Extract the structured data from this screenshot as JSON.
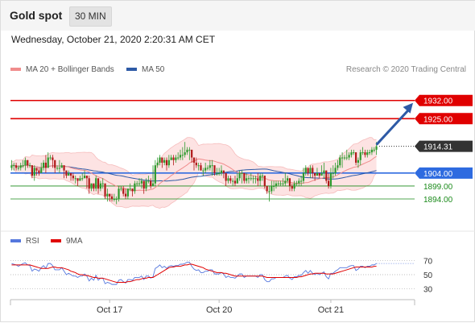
{
  "header": {
    "title": "Gold spot",
    "interval": "30 MIN",
    "datetime": "Wednesday, October 21, 2020 2:20:31 AM CET"
  },
  "legend": {
    "ma20_label": "MA 20 + Bollinger Bands",
    "ma50_label": "MA 50",
    "credit": "Research © 2020 Trading Central"
  },
  "rsi_legend": {
    "rsi_label": "RSI",
    "ma9_label": "9MA"
  },
  "colors": {
    "ma20": "#f08c8c",
    "ma50": "#2e5aa6",
    "bollinger_fill": "#fde3e3",
    "resistance": "#e00000",
    "pivot": "#2e6be0",
    "support": "#1a8a1a",
    "candle_up": "#2c9a2c",
    "candle_down": "#b01818",
    "arrow": "#2e5aa6",
    "rsi": "#5577dd",
    "rsi_ma": "#e00000"
  },
  "chart_data": [
    {
      "type": "candlestick",
      "ylim": [
        1885,
        1940
      ],
      "x_tick_labels": [
        "Oct 17",
        "Oct 20",
        "Oct 21"
      ],
      "levels": [
        {
          "label": "1932.00",
          "value": 1932.0,
          "kind": "resistance"
        },
        {
          "label": "1925.00",
          "value": 1925.0,
          "kind": "resistance"
        },
        {
          "label": "1914.31",
          "value": 1914.31,
          "kind": "last"
        },
        {
          "label": "1904.00",
          "value": 1904.0,
          "kind": "pivot"
        },
        {
          "label": "1899.00",
          "value": 1899.0,
          "kind": "support"
        },
        {
          "label": "1894.00",
          "value": 1894.0,
          "kind": "support"
        }
      ],
      "close": [
        1907,
        1907,
        1906,
        1906,
        1907,
        1907,
        1909,
        1907,
        1907,
        1903,
        1906,
        1905,
        1904,
        1906,
        1908,
        1906,
        1910,
        1910,
        1909,
        1906,
        1906,
        1906,
        1907,
        1905,
        1903,
        1904,
        1903,
        1902,
        1902,
        1901,
        1902,
        1902,
        1903,
        1902,
        1898,
        1900,
        1898,
        1902,
        1898,
        1900,
        1900,
        1895,
        1896,
        1895,
        1894,
        1894,
        1894,
        1898,
        1898,
        1896,
        1895,
        1898,
        1898,
        1897,
        1900,
        1900,
        1900,
        1901,
        1898,
        1901,
        1901,
        1899,
        1900,
        1907,
        1908,
        1910,
        1908,
        1909,
        1907,
        1909,
        1910,
        1909,
        1910,
        1910,
        1911,
        1911,
        1912,
        1913,
        1913,
        1910,
        1908,
        1907,
        1907,
        1905,
        1905,
        1906,
        1906,
        1907,
        1907,
        1904,
        1904,
        1904,
        1905,
        1904,
        1901,
        1902,
        1901,
        1901,
        1900,
        1902,
        1904,
        1904,
        1901,
        1902,
        1902,
        1902,
        1902,
        1902,
        1901,
        1903,
        1903,
        1899,
        1897,
        1897,
        1899,
        1899,
        1900,
        1900,
        1900,
        1900,
        1901,
        1902,
        1899,
        1898,
        1900,
        1900,
        1901,
        1901,
        1904,
        1906,
        1904,
        1906,
        1904,
        1903,
        1904,
        1903,
        1904,
        1905,
        1901,
        1899,
        1904,
        1904,
        1906,
        1907,
        1910,
        1910,
        1910,
        1910,
        1911,
        1912,
        1912,
        1908,
        1909,
        1912,
        1912,
        1911,
        1912,
        1912,
        1913,
        1913,
        1914.31
      ],
      "high": [
        1909,
        1908,
        1908,
        1907,
        1908,
        1909,
        1910,
        1909,
        1908,
        1907,
        1907,
        1906,
        1906,
        1908,
        1909,
        1911,
        1912,
        1911,
        1911,
        1909,
        1907,
        1909,
        1908,
        1907,
        1905,
        1905,
        1904,
        1904,
        1903,
        1902,
        1903,
        1904,
        1905,
        1903,
        1903,
        1900,
        1900,
        1903,
        1901,
        1901,
        1902,
        1900,
        1898,
        1896,
        1896,
        1896,
        1895,
        1899,
        1899,
        1899,
        1898,
        1898,
        1900,
        1898,
        1901,
        1901,
        1902,
        1902,
        1901,
        1902,
        1903,
        1902,
        1907,
        1909,
        1910,
        1911,
        1910,
        1910,
        1910,
        1911,
        1911,
        1911,
        1911,
        1912,
        1913,
        1914,
        1916,
        1914,
        1914,
        1912,
        1910,
        1910,
        1908,
        1908,
        1906,
        1908,
        1907,
        1909,
        1909,
        1907,
        1906,
        1906,
        1907,
        1905,
        1904,
        1903,
        1903,
        1902,
        1903,
        1904,
        1905,
        1905,
        1904,
        1904,
        1903,
        1904,
        1903,
        1903,
        1904,
        1904,
        1904,
        1903,
        1899,
        1899,
        1901,
        1901,
        1901,
        1901,
        1901,
        1902,
        1904,
        1903,
        1902,
        1900,
        1901,
        1901,
        1902,
        1903,
        1906,
        1907,
        1906,
        1907,
        1907,
        1904,
        1906,
        1904,
        1907,
        1908,
        1905,
        1904,
        1906,
        1907,
        1908,
        1909,
        1911,
        1912,
        1911,
        1913,
        1912,
        1913,
        1913,
        1912,
        1910,
        1913,
        1914,
        1913,
        1913,
        1913,
        1914,
        1914,
        1916
      ],
      "low": [
        1905,
        1905,
        1905,
        1905,
        1905,
        1906,
        1905,
        1906,
        1906,
        1902,
        1901,
        1903,
        1903,
        1904,
        1905,
        1904,
        1906,
        1909,
        1906,
        1904,
        1905,
        1904,
        1906,
        1902,
        1902,
        1903,
        1901,
        1901,
        1900,
        1899,
        1901,
        1901,
        1902,
        1898,
        1896,
        1897,
        1897,
        1897,
        1896,
        1897,
        1898,
        1894,
        1893,
        1893,
        1893,
        1893,
        1892,
        1893,
        1897,
        1895,
        1894,
        1894,
        1897,
        1895,
        1896,
        1899,
        1899,
        1898,
        1896,
        1897,
        1900,
        1898,
        1899,
        1899,
        1906,
        1907,
        1906,
        1907,
        1905,
        1906,
        1909,
        1907,
        1908,
        1909,
        1909,
        1909,
        1910,
        1911,
        1909,
        1908,
        1905,
        1906,
        1905,
        1905,
        1903,
        1904,
        1905,
        1905,
        1903,
        1903,
        1903,
        1903,
        1903,
        1902,
        1899,
        1900,
        1900,
        1899,
        1899,
        1900,
        1901,
        1900,
        1900,
        1900,
        1900,
        1901,
        1900,
        1900,
        1899,
        1899,
        1901,
        1898,
        1896,
        1893,
        1896,
        1897,
        1898,
        1899,
        1899,
        1899,
        1899,
        1900,
        1897,
        1897,
        1897,
        1899,
        1899,
        1899,
        1900,
        1903,
        1903,
        1902,
        1902,
        1901,
        1903,
        1902,
        1903,
        1902,
        1900,
        1898,
        1898,
        1902,
        1903,
        1905,
        1906,
        1906,
        1909,
        1909,
        1909,
        1910,
        1911,
        1907,
        1906,
        1907,
        1911,
        1910,
        1910,
        1911,
        1911,
        1912,
        1911
      ]
    },
    {
      "type": "line",
      "ylim": [
        20,
        80
      ],
      "y_tick_labels": [
        "70",
        "50",
        "30"
      ],
      "series": [
        {
          "name": "RSI",
          "values": [
            66,
            65,
            64,
            62,
            64,
            66,
            67,
            64,
            63,
            55,
            58,
            57,
            55,
            60,
            63,
            59,
            66,
            66,
            63,
            57,
            57,
            57,
            60,
            55,
            50,
            52,
            50,
            48,
            48,
            46,
            48,
            48,
            51,
            48,
            41,
            45,
            42,
            49,
            42,
            45,
            45,
            37,
            39,
            38,
            36,
            36,
            36,
            42,
            43,
            40,
            38,
            43,
            43,
            42,
            46,
            46,
            46,
            48,
            43,
            48,
            48,
            45,
            47,
            59,
            61,
            64,
            60,
            62,
            59,
            62,
            63,
            62,
            63,
            63,
            65,
            65,
            66,
            68,
            68,
            62,
            58,
            56,
            57,
            53,
            53,
            55,
            55,
            57,
            57,
            51,
            51,
            51,
            53,
            51,
            46,
            48,
            46,
            46,
            45,
            48,
            51,
            51,
            46,
            48,
            48,
            48,
            48,
            48,
            46,
            50,
            50,
            43,
            40,
            40,
            44,
            44,
            46,
            46,
            46,
            46,
            48,
            49,
            45,
            43,
            47,
            47,
            49,
            49,
            53,
            56,
            52,
            56,
            52,
            50,
            52,
            50,
            52,
            54,
            47,
            44,
            52,
            52,
            55,
            57,
            60,
            60,
            60,
            60,
            62,
            63,
            63,
            56,
            58,
            62,
            62,
            60,
            62,
            62,
            64,
            64,
            66
          ]
        },
        {
          "name": "9MA",
          "values": [
            64,
            64,
            64,
            64,
            64,
            64,
            64,
            64,
            64,
            63,
            62,
            61,
            60,
            59,
            59,
            59,
            59,
            60,
            61,
            61,
            60,
            60,
            60,
            59,
            58,
            57,
            55,
            54,
            53,
            51,
            50,
            50,
            49,
            49,
            48,
            47,
            46,
            46,
            45,
            45,
            45,
            44,
            43,
            42,
            41,
            40,
            39,
            39,
            39,
            39,
            39,
            40,
            40,
            41,
            42,
            43,
            43,
            44,
            45,
            45,
            46,
            46,
            46,
            48,
            50,
            52,
            54,
            56,
            58,
            60,
            61,
            61,
            62,
            62,
            62,
            63,
            64,
            64,
            65,
            65,
            64,
            63,
            62,
            61,
            60,
            58,
            57,
            56,
            55,
            54,
            53,
            53,
            53,
            52,
            52,
            51,
            50,
            49,
            48,
            48,
            48,
            48,
            48,
            48,
            48,
            48,
            48,
            48,
            48,
            48,
            48,
            47,
            46,
            46,
            46,
            46,
            46,
            46,
            46,
            46,
            46,
            46,
            46,
            46,
            46,
            46,
            47,
            47,
            48,
            49,
            50,
            51,
            51,
            52,
            52,
            52,
            52,
            52,
            51,
            51,
            51,
            51,
            52,
            53,
            54,
            55,
            56,
            57,
            58,
            59,
            60,
            61,
            61,
            61,
            61,
            61,
            61,
            61,
            61,
            62,
            62
          ]
        }
      ]
    }
  ]
}
